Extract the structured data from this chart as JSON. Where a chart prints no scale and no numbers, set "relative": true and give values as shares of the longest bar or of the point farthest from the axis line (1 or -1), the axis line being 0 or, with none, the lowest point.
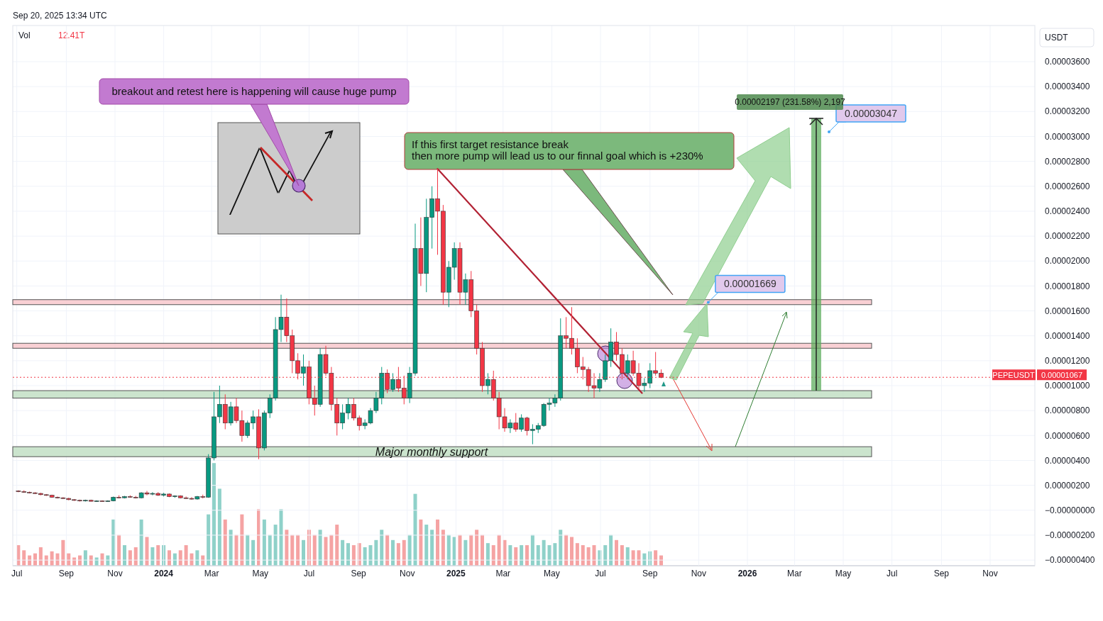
{
  "chart_data": [
    {
      "type": "candlestick",
      "ylabel": "USDT",
      "grid": true,
      "colors": [
        "#f23645",
        "#f23645",
        "#f23645",
        "#f23645",
        "#f23645",
        "#f23645",
        "#f23645",
        "#f23645",
        "#f23645",
        "#f23645",
        "#f23645",
        "#f23645",
        "#089981",
        "#f23645",
        "#089981",
        "#f23645",
        "#089981",
        "#089981",
        "#f23645",
        "#089981",
        "#f23645",
        "#f23645",
        "#089981",
        "#f23645",
        "#089981",
        "#f23645",
        "#089981",
        "#f23645",
        "#089981",
        "#f23645",
        "#f23645",
        "#f23645",
        "#089981",
        "#f23645",
        "#089981",
        "#089981",
        "#089981",
        "#f23645",
        "#089981",
        "#f23645",
        "#f23645",
        "#089981",
        "#089981",
        "#f23645",
        "#089981",
        "#089981",
        "#089981",
        "#089981",
        "#f23645",
        "#f23645",
        "#f23645",
        "#089981",
        "#f23645",
        "#f23645",
        "#089981",
        "#f23645",
        "#f23645",
        "#f23645",
        "#089981",
        "#089981",
        "#f23645",
        "#f23645",
        "#089981",
        "#089981",
        "#089981",
        "#089981",
        "#f23645",
        "#089981",
        "#f23645",
        "#f23645",
        "#089981",
        "#089981",
        "#f23645",
        "#089981",
        "#089981",
        "#f23645",
        "#f23645",
        "#089981",
        "#089981",
        "#f23645",
        "#089981",
        "#f23645",
        "#f23645",
        "#f23645",
        "#089981",
        "#f23645",
        "#f23645",
        "#f23645",
        "#089981",
        "#f23645",
        "#089981",
        "#f23645",
        "#089981",
        "#089981",
        "#089981",
        "#089981",
        "#089981",
        "#089981",
        "#f23645",
        "#f23645",
        "#f23645",
        "#f23645",
        "#f23645",
        "#f23645",
        "#089981",
        "#089981",
        "#089981",
        "#f23645",
        "#f23645",
        "#089981",
        "#f23645",
        "#f23645",
        "#089981",
        "#089981",
        "#f23645",
        "#f23645"
      ],
      "x": [
        "2023-07-03",
        "2023-07-10",
        "2023-07-17",
        "2023-07-24",
        "2023-07-31",
        "2023-08-07",
        "2023-08-14",
        "2023-08-21",
        "2023-08-28",
        "2023-09-04",
        "2023-09-11",
        "2023-09-18",
        "2023-09-25",
        "2023-10-02",
        "2023-10-09",
        "2023-10-16",
        "2023-10-23",
        "2023-10-30",
        "2023-11-06",
        "2023-11-13",
        "2023-11-20",
        "2023-11-27",
        "2023-12-04",
        "2023-12-11",
        "2023-12-18",
        "2023-12-25",
        "2024-01-01",
        "2024-01-08",
        "2024-01-15",
        "2024-01-22",
        "2024-01-29",
        "2024-02-05",
        "2024-02-12",
        "2024-02-19",
        "2024-02-26",
        "2024-03-04",
        "2024-03-11",
        "2024-03-18",
        "2024-03-25",
        "2024-04-01",
        "2024-04-08",
        "2024-04-15",
        "2024-04-22",
        "2024-04-29",
        "2024-05-06",
        "2024-05-13",
        "2024-05-20",
        "2024-05-27",
        "2024-06-03",
        "2024-06-10",
        "2024-06-17",
        "2024-06-24",
        "2024-07-01",
        "2024-07-08",
        "2024-07-15",
        "2024-07-22",
        "2024-07-29",
        "2024-08-05",
        "2024-08-12",
        "2024-08-19",
        "2024-08-26",
        "2024-09-02",
        "2024-09-09",
        "2024-09-16",
        "2024-09-23",
        "2024-09-30",
        "2024-10-07",
        "2024-10-14",
        "2024-10-21",
        "2024-10-28",
        "2024-11-04",
        "2024-11-11",
        "2024-11-18",
        "2024-11-25",
        "2024-12-02",
        "2024-12-09",
        "2024-12-16",
        "2024-12-23",
        "2024-12-30",
        "2025-01-06",
        "2025-01-13",
        "2025-01-20",
        "2025-01-27",
        "2025-02-03",
        "2025-02-10",
        "2025-02-17",
        "2025-02-24",
        "2025-03-03",
        "2025-03-10",
        "2025-03-17",
        "2025-03-24",
        "2025-03-31",
        "2025-04-07",
        "2025-04-14",
        "2025-04-21",
        "2025-04-28",
        "2025-05-05",
        "2025-05-12",
        "2025-05-19",
        "2025-05-26",
        "2025-06-02",
        "2025-06-09",
        "2025-06-16",
        "2025-06-23",
        "2025-06-30",
        "2025-07-07",
        "2025-07-14",
        "2025-07-21",
        "2025-07-28",
        "2025-08-04",
        "2025-08-11",
        "2025-08-18",
        "2025-08-25",
        "2025-09-01",
        "2025-09-08",
        "2025-09-15"
      ],
      "ohlc": [
        [
          1.55e-06,
          1.6e-06,
          1.45e-06,
          1.5e-06
        ],
        [
          1.5e-06,
          1.6e-06,
          1.4e-06,
          1.45e-06
        ],
        [
          1.45e-06,
          1.5e-06,
          1.35e-06,
          1.4e-06
        ],
        [
          1.4e-06,
          1.45e-06,
          1.3e-06,
          1.35e-06
        ],
        [
          1.35e-06,
          1.4e-06,
          1.2e-06,
          1.25e-06
        ],
        [
          1.25e-06,
          1.3e-06,
          1.15e-06,
          1.2e-06
        ],
        [
          1.2e-06,
          1.25e-06,
          1e-06,
          1.05e-06
        ],
        [
          1.05e-06,
          1.1e-06,
          9.5e-07,
          1e-06
        ],
        [
          1e-06,
          1.05e-06,
          9e-07,
          9.5e-07
        ],
        [
          9.5e-07,
          1e-06,
          8e-07,
          8.5e-07
        ],
        [
          8.5e-07,
          9e-07,
          7.5e-07,
          8e-07
        ],
        [
          8e-07,
          8.5e-07,
          7e-07,
          7.5e-07
        ],
        [
          7.5e-07,
          8.5e-07,
          7e-07,
          8e-07
        ],
        [
          8e-07,
          8.5e-07,
          7e-07,
          7.2e-07
        ],
        [
          7.2e-07,
          8e-07,
          6.8e-07,
          7.5e-07
        ],
        [
          7.5e-07,
          8e-07,
          7e-07,
          7.2e-07
        ],
        [
          7.2e-07,
          8e-07,
          6.8e-07,
          7.5e-07
        ],
        [
          7.5e-07,
          1.1e-06,
          7.2e-07,
          1.05e-06
        ],
        [
          1.05e-06,
          1.2e-06,
          9.5e-07,
          1e-06
        ],
        [
          1e-06,
          1.15e-06,
          9.5e-07,
          1.1e-06
        ],
        [
          1.1e-06,
          1.2e-06,
          1e-06,
          1.05e-06
        ],
        [
          1.05e-06,
          1.15e-06,
          9.5e-07,
          1e-06
        ],
        [
          1e-06,
          1.45e-06,
          9.5e-07,
          1.4e-06
        ],
        [
          1.4e-06,
          1.55e-06,
          1.2e-06,
          1.3e-06
        ],
        [
          1.3e-06,
          1.45e-06,
          1.2e-06,
          1.35e-06
        ],
        [
          1.35e-06,
          1.45e-06,
          1.15e-06,
          1.2e-06
        ],
        [
          1.2e-06,
          1.4e-06,
          1.1e-06,
          1.3e-06
        ],
        [
          1.3e-06,
          1.35e-06,
          1.05e-06,
          1.1e-06
        ],
        [
          1.1e-06,
          1.2e-06,
          1e-06,
          1.15e-06
        ],
        [
          1.15e-06,
          1.2e-06,
          9.5e-07,
          1e-06
        ],
        [
          1e-06,
          1.1e-06,
          9e-07,
          9.5e-07
        ],
        [
          9.5e-07,
          1.05e-06,
          8.5e-07,
          9e-07
        ],
        [
          9e-07,
          1.15e-06,
          8.5e-07,
          1.1e-06
        ],
        [
          1.1e-06,
          1.25e-06,
          9.5e-07,
          1.05e-06
        ],
        [
          1.05e-06,
          4.5e-06,
          1e-06,
          4.2e-06
        ],
        [
          4.2e-06,
          9.5e-06,
          4e-06,
          7.5e-06
        ],
        [
          7.5e-06,
          1e-05,
          7e-06,
          8.5e-06
        ],
        [
          8.5e-06,
          9.3e-06,
          6.5e-06,
          7e-06
        ],
        [
          7e-06,
          8.7e-06,
          6.8e-06,
          8.3e-06
        ],
        [
          8.3e-06,
          9e-06,
          7e-06,
          7.2e-06
        ],
        [
          7.2e-06,
          8e-06,
          5.5e-06,
          6e-06
        ],
        [
          6e-06,
          7.2e-06,
          5.8e-06,
          7e-06
        ],
        [
          7e-06,
          8e-06,
          6.5e-06,
          7.5e-06
        ],
        [
          7.5e-06,
          8.1e-06,
          4.1e-06,
          5e-06
        ],
        [
          5e-06,
          8e-06,
          4.8e-06,
          7.8e-06
        ],
        [
          7.8e-06,
          9.3e-06,
          7.4e-06,
          9e-06
        ],
        [
          9e-06,
          1.55e-05,
          8.8e-06,
          1.45e-05
        ],
        [
          1.45e-05,
          1.73e-05,
          1.35e-05,
          1.55e-05
        ],
        [
          1.55e-05,
          1.7e-05,
          1.35e-05,
          1.4e-05
        ],
        [
          1.4e-05,
          1.45e-05,
          1.1e-05,
          1.2e-05
        ],
        [
          1.2e-05,
          1.26e-05,
          1.05e-05,
          1.1e-05
        ],
        [
          1.1e-05,
          1.25e-05,
          1e-05,
          1.15e-05
        ],
        [
          1.15e-05,
          1.2e-05,
          8.5e-06,
          9e-06
        ],
        [
          9e-06,
          1e-05,
          7.6e-06,
          8.5e-06
        ],
        [
          8.5e-06,
          1.3e-05,
          8.3e-06,
          1.25e-05
        ],
        [
          1.25e-05,
          1.32e-05,
          1.08e-05,
          1.1e-05
        ],
        [
          1.1e-05,
          1.15e-05,
          8e-06,
          8.5e-06
        ],
        [
          8.5e-06,
          9e-06,
          6e-06,
          7e-06
        ],
        [
          7e-06,
          8.5e-06,
          6.5e-06,
          7.8e-06
        ],
        [
          7.8e-06,
          9e-06,
          7.3e-06,
          8.5e-06
        ],
        [
          8.5e-06,
          9e-06,
          7.2e-06,
          7.4e-06
        ],
        [
          7.4e-06,
          7.6e-06,
          6.4e-06,
          6.8e-06
        ],
        [
          6.8e-06,
          7.3e-06,
          6.5e-06,
          7e-06
        ],
        [
          7e-06,
          8.2e-06,
          6.9e-06,
          8e-06
        ],
        [
          8e-06,
          9.5e-06,
          7.8e-06,
          9e-06
        ],
        [
          9e-06,
          1.15e-05,
          8.5e-06,
          1.1e-05
        ],
        [
          1.1e-05,
          1.13e-05,
          9.4e-06,
          9.7e-06
        ],
        [
          9.7e-06,
          1.1e-05,
          9.5e-06,
          1.05e-05
        ],
        [
          1.05e-05,
          1.15e-05,
          9.5e-06,
          9.8e-06
        ],
        [
          9.8e-06,
          1.08e-05,
          8.5e-06,
          9e-06
        ],
        [
          9e-06,
          1.15e-05,
          8.6e-06,
          1.1e-05
        ],
        [
          1.1e-05,
          2.3e-05,
          1.08e-05,
          2.1e-05
        ],
        [
          2.1e-05,
          2.35e-05,
          1.8e-05,
          1.9e-05
        ],
        [
          1.9e-05,
          2.5e-05,
          1.75e-05,
          2.35e-05
        ],
        [
          2.35e-05,
          2.6e-05,
          2.1e-05,
          2.5e-05
        ],
        [
          2.5e-05,
          2.74e-05,
          2.05e-05,
          2.4e-05
        ],
        [
          2.4e-05,
          2.45e-05,
          1.65e-05,
          1.75e-05
        ],
        [
          1.75e-05,
          2e-05,
          1.63e-05,
          1.95e-05
        ],
        [
          1.95e-05,
          2.15e-05,
          1.85e-05,
          2.1e-05
        ],
        [
          2.1e-05,
          2.15e-05,
          1.65e-05,
          1.75e-05
        ],
        [
          1.75e-05,
          1.9e-05,
          1.65e-05,
          1.85e-05
        ],
        [
          1.85e-05,
          1.92e-05,
          1.55e-05,
          1.6e-05
        ],
        [
          1.6e-05,
          1.65e-05,
          1.25e-05,
          1.3e-05
        ],
        [
          1.3e-05,
          1.35e-05,
          9.5e-06,
          1e-05
        ],
        [
          1e-05,
          1.1e-05,
          9.3e-06,
          1.05e-05
        ],
        [
          1.05e-05,
          1.12e-05,
          8.8e-06,
          9e-06
        ],
        [
          9e-06,
          9.5e-06,
          6.5e-06,
          7.5e-06
        ],
        [
          7.5e-06,
          8.2e-06,
          6.3e-06,
          6.6e-06
        ],
        [
          6.6e-06,
          7.3e-06,
          6.2e-06,
          7e-06
        ],
        [
          7e-06,
          7.8e-06,
          6.3e-06,
          6.5e-06
        ],
        [
          6.5e-06,
          7.7e-06,
          6.3e-06,
          7.4e-06
        ],
        [
          7.4e-06,
          7.5e-06,
          6e-06,
          6.4e-06
        ],
        [
          6.4e-06,
          6.9e-06,
          5.3e-06,
          6.5e-06
        ],
        [
          6.5e-06,
          7e-06,
          6.2e-06,
          6.8e-06
        ],
        [
          6.8e-06,
          8.6e-06,
          6.7e-06,
          8.5e-06
        ],
        [
          8.5e-06,
          9e-06,
          8e-06,
          8.6e-06
        ],
        [
          8.6e-06,
          9.3e-06,
          8.3e-06,
          9e-06
        ],
        [
          9e-06,
          1.54e-05,
          8.8e-06,
          1.4e-05
        ],
        [
          1.4e-05,
          1.55e-05,
          1.3e-05,
          1.38e-05
        ],
        [
          1.38e-05,
          1.63e-05,
          1.25e-05,
          1.3e-05
        ],
        [
          1.3e-05,
          1.38e-05,
          1.1e-05,
          1.15e-05
        ],
        [
          1.15e-05,
          1.23e-05,
          1.05e-05,
          1.13e-05
        ],
        [
          1.13e-05,
          1.15e-05,
          9.5e-06,
          1e-05
        ],
        [
          1e-05,
          1.1e-05,
          9e-06,
          9.8e-06
        ],
        [
          9.8e-06,
          1.1e-05,
          9.5e-06,
          1.05e-05
        ],
        [
          1.05e-05,
          1.25e-05,
          1.03e-05,
          1.2e-05
        ],
        [
          1.2e-05,
          1.46e-05,
          1.15e-05,
          1.35e-05
        ],
        [
          1.35e-05,
          1.43e-05,
          1.2e-05,
          1.25e-05
        ],
        [
          1.25e-05,
          1.3e-05,
          1.05e-05,
          1.1e-05
        ],
        [
          1.1e-05,
          1.25e-05,
          1.05e-05,
          1.2e-05
        ],
        [
          1.2e-05,
          1.28e-05,
          1.08e-05,
          1.1e-05
        ],
        [
          1.1e-05,
          1.18e-05,
          9.7e-06,
          1e-05
        ],
        [
          1e-05,
          1.06e-05,
          9.5e-06,
          1.02e-05
        ],
        [
          1.02e-05,
          1.18e-05,
          9.8e-06,
          1.12e-05
        ],
        [
          1.12e-05,
          1.27e-05,
          1.08e-05,
          1.1e-05
        ],
        [
          1.1e-05,
          1.13e-05,
          1.06e-05,
          1.067e-05
        ]
      ],
      "series": [
        {
          "type": "line",
          "x": [
            "2024-12-09",
            "2025-08-22"
          ],
          "values": [
            2.74e-05,
            9.4e-06
          ],
          "color": "#b22234"
        }
      ],
      "xlim": [
        "2023-06-26",
        "2026-12-27"
      ],
      "xticks": [
        {
          "value": "2023-07-01",
          "label": "Jul"
        },
        {
          "value": "2023-09-01",
          "label": "Sep"
        },
        {
          "value": "2023-11-01",
          "label": "Nov"
        },
        {
          "value": "2024-01-01",
          "label": "2024"
        },
        {
          "value": "2024-03-01",
          "label": "Mar"
        },
        {
          "value": "2024-05-01",
          "label": "May"
        },
        {
          "value": "2024-07-01",
          "label": "Jul"
        },
        {
          "value": "2024-09-01",
          "label": "Sep"
        },
        {
          "value": "2024-11-01",
          "label": "Nov"
        },
        {
          "value": "2025-01-01",
          "label": "2025"
        },
        {
          "value": "2025-03-01",
          "label": "Mar"
        },
        {
          "value": "2025-05-01",
          "label": "May"
        },
        {
          "value": "2025-07-01",
          "label": "Jul"
        },
        {
          "value": "2025-09-01",
          "label": "Sep"
        },
        {
          "value": "2025-11-01",
          "label": "Nov"
        },
        {
          "value": "2026-01-01",
          "label": "2026"
        },
        {
          "value": "2026-03-01",
          "label": "Mar"
        },
        {
          "value": "2026-05-01",
          "label": "May"
        },
        {
          "value": "2026-07-01",
          "label": "Jul"
        },
        {
          "value": "2026-09-01",
          "label": "Sep"
        },
        {
          "value": "2026-11-01",
          "label": "Nov"
        }
      ],
      "ylim": [
        -4.45e-06,
        3.89e-05
      ],
      "yticks": [
        {
          "value": -4e-06,
          "label": "−0.00000400"
        },
        {
          "value": -2e-06,
          "label": "−0.00000200"
        },
        {
          "value": 0,
          "label": "−0.00000000"
        },
        {
          "value": 2e-06,
          "label": "0.00000200"
        },
        {
          "value": 4e-06,
          "label": "0.00000400"
        },
        {
          "value": 6e-06,
          "label": "0.00000600"
        },
        {
          "value": 8e-06,
          "label": "0.00000800"
        },
        {
          "value": 1e-05,
          "label": "0.00001000"
        },
        {
          "value": 1.2e-05,
          "label": "0.00001200"
        },
        {
          "value": 1.4e-05,
          "label": "0.00001400"
        },
        {
          "value": 1.6e-05,
          "label": "0.00001600"
        },
        {
          "value": 1.8e-05,
          "label": "0.00001800"
        },
        {
          "value": 2e-05,
          "label": "0.00002000"
        },
        {
          "value": 2.2e-05,
          "label": "0.00002200"
        },
        {
          "value": 2.4e-05,
          "label": "0.00002400"
        },
        {
          "value": 2.6e-05,
          "label": "0.00002600"
        },
        {
          "value": 2.8e-05,
          "label": "0.00002800"
        },
        {
          "value": 3e-05,
          "label": "0.00003000"
        },
        {
          "value": 3.2e-05,
          "label": "0.00003200"
        },
        {
          "value": 3.4e-05,
          "label": "0.00003400"
        },
        {
          "value": 3.6e-05,
          "label": "0.00003600"
        }
      ],
      "bands": [
        {
          "axis": "y",
          "from": 1.65e-05,
          "to": 1.69e-05,
          "color": "#f8c8cc"
        },
        {
          "axis": "y",
          "from": 1.3e-05,
          "to": 1.34e-05,
          "color": "#f8c8cc"
        },
        {
          "axis": "y",
          "from": 9e-06,
          "to": 9.6e-06,
          "color": "#c2dfc4"
        },
        {
          "axis": "y",
          "from": 4.3e-06,
          "to": 5.1e-06,
          "color": "#c2dfc4",
          "label": "Major monthly support"
        }
      ],
      "ref_lines": [
        {
          "axis": "y",
          "value": 1.067e-05,
          "label": "0.00001067",
          "color": "#f23645",
          "line_style": "dotted"
        }
      ],
      "annotations": [
        "Sep 20, 2025 13:34 UTC",
        "breakout and retest here is happening will cause huge pump",
        "If this first target resistance break\nthen more pump will lead us to our finnal goal which is +230%",
        {
          "text": "0.00001669",
          "x": "2025-11-13",
          "y": 1.669e-05
        },
        "0.00003047",
        "0.00002197 (231.58%) 2,197",
        {
          "text": "PEPEUSDT",
          "y": 1.067e-05
        }
      ]
    },
    {
      "type": "bar",
      "relative": true,
      "title": "Vol",
      "subtitle": "12.41T",
      "tick_labels": false,
      "categories": [
        null,
        null,
        null,
        null,
        null,
        null,
        null,
        null,
        null,
        null,
        null,
        null,
        null,
        null,
        null,
        null,
        null,
        null,
        null,
        null,
        null,
        null,
        null,
        null,
        null,
        null,
        null,
        null,
        null,
        null,
        null,
        null,
        null,
        null,
        null,
        null,
        null,
        null,
        null,
        null,
        null,
        null,
        null,
        null,
        null,
        null,
        null,
        null,
        null,
        null,
        null,
        null,
        null,
        null,
        null,
        null,
        null,
        null,
        null,
        null,
        null,
        null,
        null,
        null,
        null,
        null,
        null,
        null,
        null,
        null,
        null,
        null,
        null,
        null,
        null,
        null,
        null,
        null,
        null,
        null,
        null,
        null,
        null,
        null,
        null,
        null,
        null,
        null,
        null,
        null,
        null,
        null,
        null,
        null,
        null,
        null,
        null,
        null,
        null,
        null,
        null,
        null,
        null,
        null,
        null,
        null,
        null,
        null,
        null,
        null,
        null,
        null,
        null,
        null,
        null,
        null
      ],
      "values": [
        0.2,
        0.15,
        0.1,
        0.12,
        0.18,
        0.1,
        0.14,
        0.12,
        0.25,
        0.12,
        0.08,
        0.1,
        0.15,
        0.1,
        0.08,
        0.12,
        0.1,
        0.45,
        0.3,
        0.2,
        0.15,
        0.18,
        0.45,
        0.28,
        0.18,
        0.2,
        0.2,
        0.15,
        0.12,
        0.15,
        0.2,
        0.12,
        0.15,
        0.1,
        0.5,
        1.0,
        0.75,
        0.45,
        0.35,
        0.3,
        0.5,
        0.3,
        0.25,
        0.55,
        0.45,
        0.3,
        0.4,
        0.55,
        0.35,
        0.3,
        0.3,
        0.25,
        0.35,
        0.3,
        0.35,
        0.28,
        0.3,
        0.4,
        0.25,
        0.22,
        0.2,
        0.22,
        0.18,
        0.2,
        0.25,
        0.35,
        0.3,
        0.25,
        0.22,
        0.25,
        0.3,
        0.7,
        0.45,
        0.4,
        0.35,
        0.45,
        0.35,
        0.3,
        0.28,
        0.3,
        0.25,
        0.3,
        0.35,
        0.3,
        0.22,
        0.2,
        0.3,
        0.25,
        0.2,
        0.18,
        0.2,
        0.2,
        0.3,
        0.2,
        0.25,
        0.2,
        0.22,
        0.35,
        0.3,
        0.28,
        0.22,
        0.2,
        0.18,
        0.2,
        0.15,
        0.2,
        0.3,
        0.25,
        0.2,
        0.18,
        0.15,
        0.15,
        0.12,
        0.14,
        0.15,
        0.1
      ],
      "colors": [
        "#f5a3a3",
        "#f5a3a3",
        "#f5a3a3",
        "#f5a3a3",
        "#f5a3a3",
        "#f5a3a3",
        "#f5a3a3",
        "#f5a3a3",
        "#f5a3a3",
        "#f5a3a3",
        "#f5a3a3",
        "#f5a3a3",
        "#8fd1c9",
        "#f5a3a3",
        "#8fd1c9",
        "#f5a3a3",
        "#8fd1c9",
        "#8fd1c9",
        "#f5a3a3",
        "#8fd1c9",
        "#f5a3a3",
        "#f5a3a3",
        "#8fd1c9",
        "#f5a3a3",
        "#8fd1c9",
        "#f5a3a3",
        "#8fd1c9",
        "#f5a3a3",
        "#8fd1c9",
        "#f5a3a3",
        "#f5a3a3",
        "#f5a3a3",
        "#8fd1c9",
        "#f5a3a3",
        "#8fd1c9",
        "#8fd1c9",
        "#8fd1c9",
        "#f5a3a3",
        "#8fd1c9",
        "#f5a3a3",
        "#f5a3a3",
        "#8fd1c9",
        "#8fd1c9",
        "#f5a3a3",
        "#8fd1c9",
        "#8fd1c9",
        "#8fd1c9",
        "#8fd1c9",
        "#f5a3a3",
        "#f5a3a3",
        "#f5a3a3",
        "#8fd1c9",
        "#f5a3a3",
        "#f5a3a3",
        "#8fd1c9",
        "#f5a3a3",
        "#f5a3a3",
        "#f5a3a3",
        "#8fd1c9",
        "#8fd1c9",
        "#f5a3a3",
        "#f5a3a3",
        "#8fd1c9",
        "#8fd1c9",
        "#8fd1c9",
        "#8fd1c9",
        "#f5a3a3",
        "#8fd1c9",
        "#f5a3a3",
        "#f5a3a3",
        "#8fd1c9",
        "#8fd1c9",
        "#f5a3a3",
        "#8fd1c9",
        "#8fd1c9",
        "#f5a3a3",
        "#f5a3a3",
        "#8fd1c9",
        "#8fd1c9",
        "#f5a3a3",
        "#8fd1c9",
        "#f5a3a3",
        "#f5a3a3",
        "#f5a3a3",
        "#8fd1c9",
        "#f5a3a3",
        "#f5a3a3",
        "#f5a3a3",
        "#8fd1c9",
        "#f5a3a3",
        "#8fd1c9",
        "#f5a3a3",
        "#8fd1c9",
        "#8fd1c9",
        "#8fd1c9",
        "#8fd1c9",
        "#8fd1c9",
        "#8fd1c9",
        "#f5a3a3",
        "#f5a3a3",
        "#f5a3a3",
        "#f5a3a3",
        "#f5a3a3",
        "#f5a3a3",
        "#8fd1c9",
        "#8fd1c9",
        "#8fd1c9",
        "#f5a3a3",
        "#f5a3a3",
        "#8fd1c9",
        "#f5a3a3",
        "#f5a3a3",
        "#8fd1c9",
        "#8fd1c9",
        "#f5a3a3",
        "#f5a3a3"
      ]
    }
  ]
}
